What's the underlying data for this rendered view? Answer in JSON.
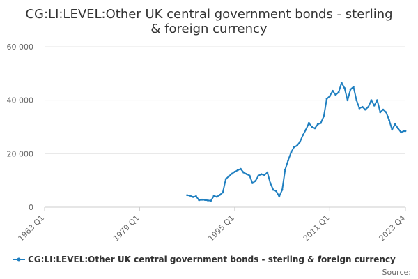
{
  "chart_data": {
    "type": "line",
    "title_lines": [
      "CG:LI:LEVEL:Other UK central government bonds - sterling",
      "& foreign currency"
    ],
    "x_ticks": [
      "1963 Q1",
      "1979 Q1",
      "1995 Q1",
      "2011 Q1",
      "2023 Q4"
    ],
    "y_ticks": [
      "0",
      "20 000",
      "40 000",
      "60 000"
    ],
    "ylim": [
      0,
      60000
    ],
    "xlim": [
      1963.0,
      2023.75
    ],
    "grid": true,
    "legend_position": "bottom",
    "series": [
      {
        "name": "CG:LI:LEVEL:Other UK central government bonds - sterling & foreign currency",
        "color": "#1f7fc0",
        "x": [
          1987.0,
          1987.5,
          1988.0,
          1988.5,
          1989.0,
          1989.5,
          1990.0,
          1990.5,
          1991.0,
          1991.5,
          1992.0,
          1992.5,
          1993.0,
          1993.5,
          1994.0,
          1994.5,
          1995.0,
          1995.5,
          1996.0,
          1996.5,
          1997.0,
          1997.5,
          1998.0,
          1998.5,
          1999.0,
          1999.5,
          2000.0,
          2000.5,
          2001.0,
          2001.5,
          2002.0,
          2002.5,
          2003.0,
          2003.5,
          2004.0,
          2004.5,
          2005.0,
          2005.5,
          2006.0,
          2006.5,
          2007.0,
          2007.5,
          2008.0,
          2008.5,
          2009.0,
          2009.5,
          2010.0,
          2010.5,
          2011.0,
          2011.5,
          2012.0,
          2012.5,
          2013.0,
          2013.5,
          2014.0,
          2014.5,
          2015.0,
          2015.5,
          2016.0,
          2016.5,
          2017.0,
          2017.5,
          2018.0,
          2018.5,
          2019.0,
          2019.5,
          2020.0,
          2020.5,
          2021.0,
          2021.5,
          2022.0,
          2022.5,
          2023.0,
          2023.5,
          2023.75
        ],
        "values": [
          4500,
          4300,
          3800,
          4100,
          2600,
          2800,
          2700,
          2500,
          2400,
          4200,
          3900,
          4600,
          5500,
          10500,
          11500,
          12500,
          13200,
          13800,
          14300,
          13000,
          12400,
          11800,
          9000,
          9800,
          11800,
          12300,
          12000,
          13000,
          9000,
          6500,
          6000,
          4000,
          6500,
          14000,
          17500,
          20500,
          22500,
          23000,
          24500,
          27000,
          29000,
          31500,
          30000,
          29500,
          31000,
          31500,
          34000,
          40500,
          41500,
          43500,
          42000,
          43000,
          46500,
          44500,
          40000,
          44000,
          45000,
          40000,
          37000,
          37500,
          36500,
          37500,
          40000,
          38000,
          40000,
          35500,
          36500,
          35500,
          32500,
          29000,
          31000,
          29500,
          28000,
          28500,
          28500
        ]
      }
    ],
    "source_label": "Source:"
  }
}
